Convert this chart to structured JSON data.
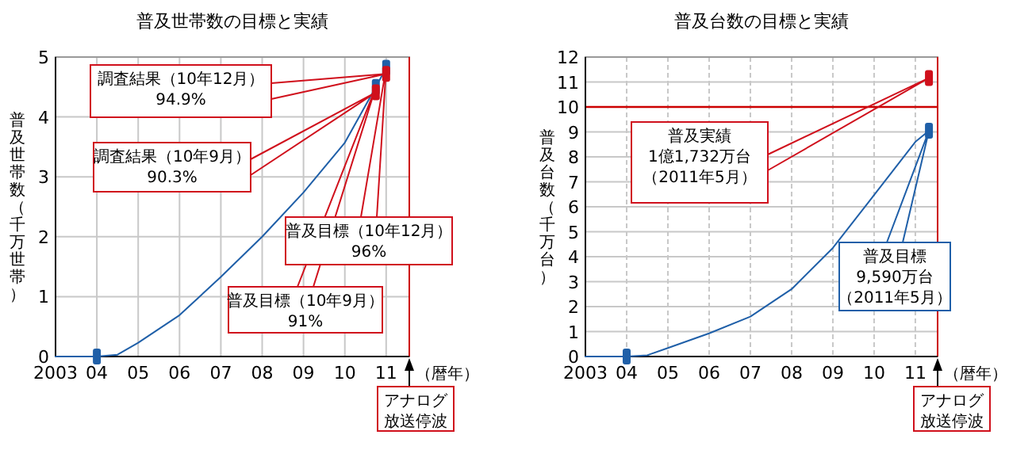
{
  "chart_data": [
    {
      "type": "line",
      "title": "普及世帯数の目標と実績",
      "xlabel": "（暦年）",
      "ylabel": "普及世帯数（千万世帯）",
      "xlim": [
        2003,
        2011.56
      ],
      "xticks": [
        {
          "value": 2003,
          "label": "2003"
        },
        {
          "value": 2004,
          "label": "04"
        },
        {
          "value": 2005,
          "label": "05"
        },
        {
          "value": 2006,
          "label": "06"
        },
        {
          "value": 2007,
          "label": "07"
        },
        {
          "value": 2008,
          "label": "08"
        },
        {
          "value": 2009,
          "label": "09"
        },
        {
          "value": 2010,
          "label": "10"
        },
        {
          "value": 2011,
          "label": "11"
        }
      ],
      "ylim": [
        0,
        5
      ],
      "yticks": [
        0,
        1,
        2,
        3,
        4,
        5
      ],
      "grid": true,
      "series": [
        {
          "color": "#1f5fa8",
          "x": [
            2003,
            2004,
            2004.5,
            2005,
            2006,
            2007,
            2008,
            2009,
            2010,
            2010.75,
            2011
          ],
          "values": [
            0,
            0,
            0.03,
            0.23,
            0.69,
            1.33,
            2.0,
            2.74,
            3.57,
            4.5,
            4.82
          ]
        },
        {
          "type": "scatter",
          "marker": "square",
          "color": "#1f5fa8",
          "x": [
            2004,
            2010.75,
            2011
          ],
          "values": [
            0,
            4.5,
            4.82
          ]
        },
        {
          "type": "scatter",
          "marker": "square",
          "color": "#d0101c",
          "x": [
            2010.75,
            2011
          ],
          "values": [
            4.41,
            4.72
          ]
        }
      ],
      "annotations": [
        "調査結果（10年12月）\n94.9%",
        "調査結果（10年9月）\n90.3%",
        "普及目標（10年12月）\n96%",
        "普及目標（10年9月）\n91%",
        "アナログ放送停波"
      ]
    },
    {
      "type": "line",
      "title": "普及台数の目標と実績",
      "xlabel": "（暦年）",
      "ylabel": "普及台数（千万台）",
      "xlim": [
        2003,
        2011.54
      ],
      "xticks": [
        {
          "value": 2003,
          "label": "2003"
        },
        {
          "value": 2004,
          "label": "04"
        },
        {
          "value": 2005,
          "label": "05"
        },
        {
          "value": 2006,
          "label": "06"
        },
        {
          "value": 2007,
          "label": "07"
        },
        {
          "value": 2008,
          "label": "08"
        },
        {
          "value": 2009,
          "label": "09"
        },
        {
          "value": 2010,
          "label": "10"
        },
        {
          "value": 2011,
          "label": "11"
        }
      ],
      "ylim": [
        0,
        12
      ],
      "yticks": [
        0,
        1,
        2,
        3,
        4,
        5,
        6,
        7,
        8,
        9,
        10,
        11,
        12
      ],
      "grid": true,
      "ref_lines": [
        {
          "axis": "y",
          "value": 10,
          "color": "#cc0000"
        }
      ],
      "series": [
        {
          "color": "#1f5fa8",
          "x": [
            2003,
            2004,
            2004.5,
            2005,
            2006,
            2007,
            2008,
            2009,
            2010,
            2011,
            2011.33
          ],
          "values": [
            0,
            0,
            0.05,
            0.34,
            0.93,
            1.6,
            2.7,
            4.35,
            6.47,
            8.6,
            9.05
          ]
        },
        {
          "type": "scatter",
          "marker": "square",
          "color": "#1f5fa8",
          "x": [
            2004,
            2011.33
          ],
          "values": [
            0,
            9.05
          ]
        },
        {
          "type": "scatter",
          "marker": "square",
          "color": "#d0101c",
          "x": [
            2011.33
          ],
          "values": [
            11.16
          ]
        }
      ],
      "annotations": [
        "普及実績1億1,732万台（2011年5月）",
        "普及目標9,590万台（2011年5月）",
        "アナログ放送停波"
      ]
    }
  ]
}
